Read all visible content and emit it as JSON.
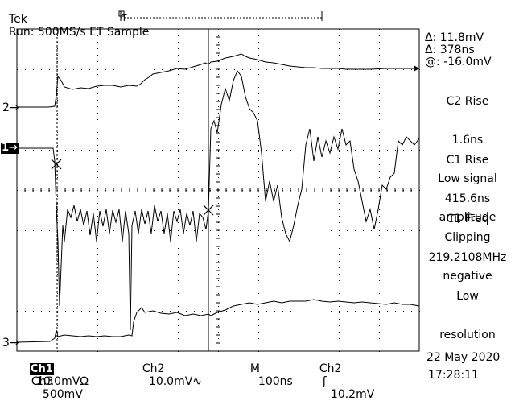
{
  "header": {
    "brand": "Tek",
    "run_status": "Run: 500MS/s ET Sample"
  },
  "readouts": {
    "delta_v": "Δ: 11.8mV",
    "delta_t": "Δ: 378ns",
    "at": "@: -16.0mV"
  },
  "measurements": [
    {
      "name": "C2 Rise",
      "value": "1.6ns",
      "note1": "Low signal",
      "note2": "amplitude"
    },
    {
      "name": "C1 Rise",
      "value": "415.6ns",
      "note1": "Clipping",
      "note2": "negative"
    },
    {
      "name": "C1 Freq",
      "value": "219.2108MHz",
      "note1": "Low",
      "note2": "resolution"
    }
  ],
  "channel_markers": {
    "ch2": "2",
    "ch1": "1",
    "ch3": "3"
  },
  "status_bar": {
    "ch1_label": "Ch1",
    "ch1_scale": "10.0mVΩ",
    "ch2_label": "Ch2",
    "ch2_scale": "10.0mV",
    "ch2_coupling": "∿",
    "timebase_label": "M",
    "timebase": "100ns",
    "trig_source": "Ch2",
    "trig_slope": "ʃ",
    "trig_level": "10.2mV",
    "ch3_label": "Ch3",
    "ch3_scale": "500mV",
    "date": "22 May 2020",
    "time": "17:28:11"
  }
}
